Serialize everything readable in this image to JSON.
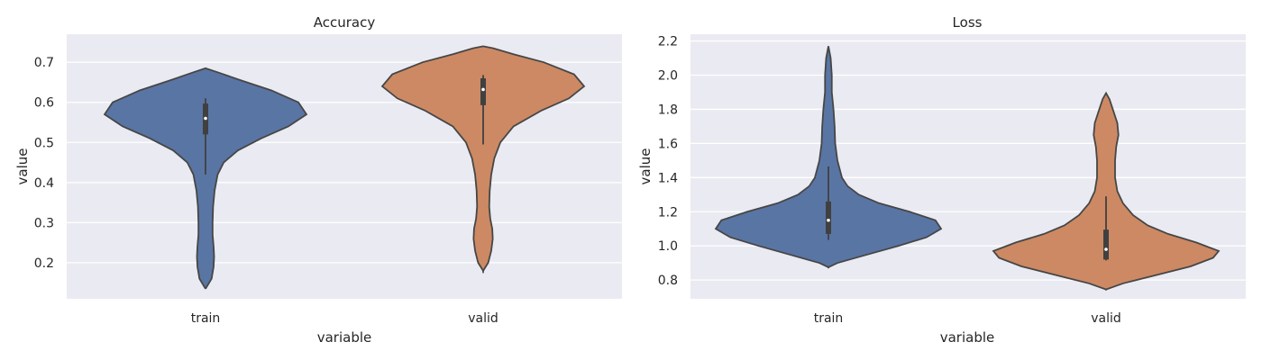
{
  "chart_data": [
    {
      "type": "violin",
      "title": "Accuracy",
      "xlabel": "variable",
      "ylabel": "value",
      "categories": [
        "train",
        "valid"
      ],
      "ylim": [
        0.11,
        0.77
      ],
      "yticks": [
        0.2,
        0.3,
        0.4,
        0.5,
        0.6,
        0.7
      ],
      "ytick_labels": [
        "0.2",
        "0.3",
        "0.4",
        "0.5",
        "0.6",
        "0.7"
      ],
      "grid": true,
      "violins": [
        {
          "category": "train",
          "color": "#5975a4",
          "ymin": 0.135,
          "ymax": 0.685,
          "profile": [
            [
              0.135,
              0.0
            ],
            [
              0.16,
              0.06
            ],
            [
              0.19,
              0.08
            ],
            [
              0.215,
              0.085
            ],
            [
              0.24,
              0.08
            ],
            [
              0.27,
              0.07
            ],
            [
              0.3,
              0.07
            ],
            [
              0.34,
              0.075
            ],
            [
              0.38,
              0.09
            ],
            [
              0.42,
              0.12
            ],
            [
              0.45,
              0.18
            ],
            [
              0.48,
              0.32
            ],
            [
              0.51,
              0.55
            ],
            [
              0.54,
              0.82
            ],
            [
              0.57,
              1.0
            ],
            [
              0.6,
              0.92
            ],
            [
              0.63,
              0.65
            ],
            [
              0.655,
              0.35
            ],
            [
              0.675,
              0.12
            ],
            [
              0.685,
              0.0
            ]
          ],
          "whisker": [
            0.42,
            0.61
          ],
          "q1": 0.52,
          "q3": 0.597,
          "median": 0.56
        },
        {
          "category": "valid",
          "color": "#cc8963",
          "ymin": 0.18,
          "ymax": 0.74,
          "profile": [
            [
              0.18,
              0.0
            ],
            [
              0.2,
              0.05
            ],
            [
              0.23,
              0.08
            ],
            [
              0.26,
              0.095
            ],
            [
              0.285,
              0.09
            ],
            [
              0.31,
              0.07
            ],
            [
              0.34,
              0.06
            ],
            [
              0.38,
              0.065
            ],
            [
              0.42,
              0.08
            ],
            [
              0.46,
              0.11
            ],
            [
              0.5,
              0.17
            ],
            [
              0.54,
              0.3
            ],
            [
              0.58,
              0.58
            ],
            [
              0.61,
              0.85
            ],
            [
              0.64,
              1.0
            ],
            [
              0.67,
              0.9
            ],
            [
              0.7,
              0.6
            ],
            [
              0.72,
              0.3
            ],
            [
              0.735,
              0.1
            ],
            [
              0.74,
              0.0
            ]
          ],
          "whisker": [
            0.495,
            0.668
          ],
          "q1": 0.593,
          "q3": 0.66,
          "median": 0.632
        }
      ]
    },
    {
      "type": "violin",
      "title": "Loss",
      "xlabel": "variable",
      "ylabel": "value",
      "categories": [
        "train",
        "valid"
      ],
      "ylim": [
        0.69,
        2.24
      ],
      "yticks": [
        0.8,
        1.0,
        1.2,
        1.4,
        1.6,
        1.8,
        2.0,
        2.2
      ],
      "ytick_labels": [
        "0.8",
        "1.0",
        "1.2",
        "1.4",
        "1.6",
        "1.8",
        "2.0",
        "2.2"
      ],
      "grid": true,
      "violins": [
        {
          "category": "train",
          "color": "#5975a4",
          "ymin": 0.875,
          "ymax": 2.17,
          "profile": [
            [
              0.875,
              0.0
            ],
            [
              0.9,
              0.08
            ],
            [
              0.95,
              0.35
            ],
            [
              1.0,
              0.62
            ],
            [
              1.05,
              0.87
            ],
            [
              1.1,
              1.0
            ],
            [
              1.15,
              0.95
            ],
            [
              1.2,
              0.72
            ],
            [
              1.25,
              0.45
            ],
            [
              1.3,
              0.27
            ],
            [
              1.35,
              0.17
            ],
            [
              1.4,
              0.12
            ],
            [
              1.5,
              0.08
            ],
            [
              1.6,
              0.06
            ],
            [
              1.7,
              0.055
            ],
            [
              1.8,
              0.045
            ],
            [
              1.9,
              0.03
            ],
            [
              2.0,
              0.03
            ],
            [
              2.1,
              0.02
            ],
            [
              2.17,
              0.0
            ]
          ],
          "whisker": [
            1.035,
            1.465
          ],
          "q1": 1.07,
          "q3": 1.26,
          "median": 1.15
        },
        {
          "category": "valid",
          "color": "#cc8963",
          "ymin": 0.745,
          "ymax": 1.895,
          "profile": [
            [
              0.745,
              0.0
            ],
            [
              0.78,
              0.15
            ],
            [
              0.83,
              0.45
            ],
            [
              0.88,
              0.75
            ],
            [
              0.93,
              0.95
            ],
            [
              0.97,
              1.0
            ],
            [
              1.02,
              0.8
            ],
            [
              1.07,
              0.55
            ],
            [
              1.12,
              0.37
            ],
            [
              1.18,
              0.24
            ],
            [
              1.25,
              0.15
            ],
            [
              1.32,
              0.1
            ],
            [
              1.4,
              0.08
            ],
            [
              1.5,
              0.08
            ],
            [
              1.58,
              0.09
            ],
            [
              1.65,
              0.11
            ],
            [
              1.72,
              0.1
            ],
            [
              1.8,
              0.06
            ],
            [
              1.86,
              0.03
            ],
            [
              1.895,
              0.0
            ]
          ],
          "whisker": [
            0.915,
            1.29
          ],
          "q1": 0.92,
          "q3": 1.095,
          "median": 0.98
        }
      ]
    }
  ]
}
